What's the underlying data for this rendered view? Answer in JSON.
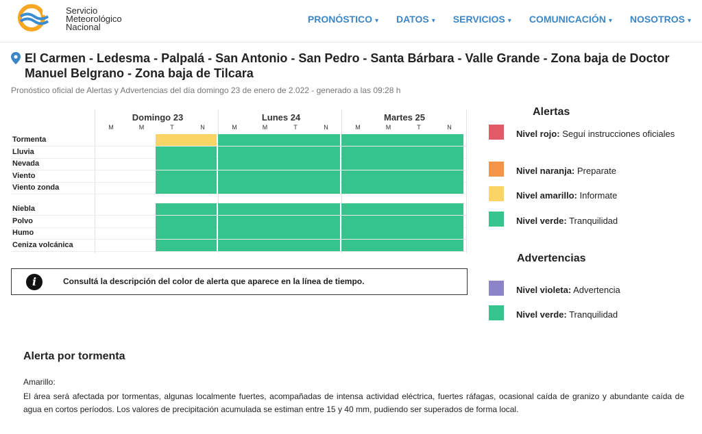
{
  "header": {
    "logo_lines": [
      "Servicio",
      "Meteorológico",
      "Nacional"
    ],
    "nav": [
      {
        "label": "PRONÓSTICO"
      },
      {
        "label": "DATOS"
      },
      {
        "label": "SERVICIOS"
      },
      {
        "label": "COMUNICACIÓN"
      },
      {
        "label": "NOSOTROS"
      }
    ],
    "caret": "▾"
  },
  "title": "El Carmen - Ledesma - Palpalá - San Antonio - San Pedro - Santa Bárbara - Valle Grande - Zona baja de Doctor Manuel Belgrano - Zona baja de Tilcara",
  "subtitle": "Pronóstico oficial de Alertas y Advertencias del día domingo 23 de enero de 2.022 - generado a las 09:28 h",
  "timeline": {
    "days": [
      {
        "label": "Domingo 23",
        "periods": [
          "M",
          "M",
          "T",
          "N"
        ]
      },
      {
        "label": "Lunes 24",
        "periods": [
          "M",
          "M",
          "T",
          "N"
        ]
      },
      {
        "label": "Martes 25",
        "periods": [
          "M",
          "M",
          "T",
          "N"
        ]
      }
    ],
    "rows": [
      {
        "label": "Tormenta",
        "levels": [
          null,
          null,
          "yellow",
          "yellow",
          "green",
          "green",
          "green",
          "green",
          "green",
          "green",
          "green",
          "green"
        ]
      },
      {
        "label": "Lluvia",
        "levels": [
          null,
          null,
          "green",
          "green",
          "green",
          "green",
          "green",
          "green",
          "green",
          "green",
          "green",
          "green"
        ]
      },
      {
        "label": "Nevada",
        "levels": [
          null,
          null,
          "green",
          "green",
          "green",
          "green",
          "green",
          "green",
          "green",
          "green",
          "green",
          "green"
        ]
      },
      {
        "label": "Viento",
        "levels": [
          null,
          null,
          "green",
          "green",
          "green",
          "green",
          "green",
          "green",
          "green",
          "green",
          "green",
          "green"
        ]
      },
      {
        "label": "Viento zonda",
        "levels": [
          null,
          null,
          "green",
          "green",
          "green",
          "green",
          "green",
          "green",
          "green",
          "green",
          "green",
          "green"
        ]
      },
      {
        "label": "Niebla",
        "levels": [
          null,
          null,
          "green",
          "green",
          "green",
          "green",
          "green",
          "green",
          "green",
          "green",
          "green",
          "green"
        ]
      },
      {
        "label": "Polvo",
        "levels": [
          null,
          null,
          "green",
          "green",
          "green",
          "green",
          "green",
          "green",
          "green",
          "green",
          "green",
          "green"
        ]
      },
      {
        "label": "Humo",
        "levels": [
          null,
          null,
          "green",
          "green",
          "green",
          "green",
          "green",
          "green",
          "green",
          "green",
          "green",
          "green"
        ]
      },
      {
        "label": "Ceniza volcánica",
        "levels": [
          null,
          null,
          "green",
          "green",
          "green",
          "green",
          "green",
          "green",
          "green",
          "green",
          "green",
          "green"
        ]
      }
    ]
  },
  "info_box": {
    "icon": "i",
    "text": "Consultá la descripción del color de alerta que aparece en la línea de tiempo."
  },
  "legend": {
    "alertas_title": "Alertas",
    "alertas": [
      {
        "level": "Nivel rojo:",
        "desc": " Seguí instrucciones oficiales",
        "color": "#e05a67"
      },
      {
        "level": "Nivel naranja:",
        "desc": " Preparate",
        "color": "#f39549"
      },
      {
        "level": "Nivel amarillo:",
        "desc": " Informate",
        "color": "#fbd466"
      },
      {
        "level": "Nivel verde:",
        "desc": " Tranquilidad",
        "color": "#35c48e"
      }
    ],
    "advertencias_title": "Advertencias",
    "advertencias": [
      {
        "level": "Nivel violeta:",
        "desc": " Advertencia",
        "color": "#8d83c9"
      },
      {
        "level": "Nivel verde:",
        "desc": " Tranquilidad",
        "color": "#35c48e"
      }
    ]
  },
  "colors": {
    "yellow": "#fbd466",
    "green": "#35c48e",
    "brand_blue": "#3b86c6",
    "logo_orange": "#f6a623",
    "logo_blue": "#3a8ed0"
  },
  "alert_detail": {
    "title": "Alerta por tormenta",
    "level": "Amarillo:",
    "description": "El área será afectada por tormentas, algunas localmente fuertes, acompañadas de intensa actividad eléctrica, fuertes ráfagas, ocasional caída de granizo y abundante caída de agua en cortos períodos. Los valores de precipitación acumulada se estiman entre 15 y 40 mm, pudiendo ser superados de forma local."
  }
}
